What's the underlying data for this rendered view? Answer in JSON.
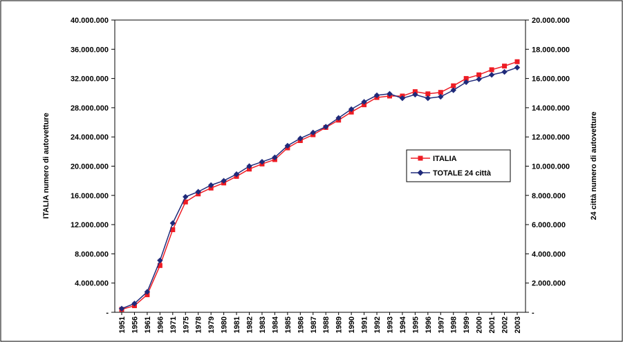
{
  "chart_data": {
    "type": "line",
    "title": "",
    "ylabel": "ITALIA numero di autovetture",
    "y2label": "24 città numero di autovetture",
    "xlabel": "",
    "ylim": [
      0,
      40000000
    ],
    "y2lim": [
      0,
      20000000
    ],
    "yticks": [
      0,
      4000000,
      8000000,
      12000000,
      16000000,
      20000000,
      24000000,
      28000000,
      32000000,
      36000000,
      40000000
    ],
    "yticklabels": [
      "-",
      "4.000.000",
      "8.000.000",
      "12.000.000",
      "16.000.000",
      "20.000.000",
      "24.000.000",
      "28.000.000",
      "32.000.000",
      "36.000.000",
      "40.000.000"
    ],
    "y2ticks": [
      0,
      2000000,
      4000000,
      6000000,
      8000000,
      10000000,
      12000000,
      14000000,
      16000000,
      18000000,
      20000000
    ],
    "y2ticklabels": [
      "-",
      "2.000.000",
      "4.000.000",
      "6.000.000",
      "8.000.000",
      "10.000.000",
      "12.000.000",
      "14.000.000",
      "16.000.000",
      "18.000.000",
      "20.000.000"
    ],
    "categories": [
      "1951",
      "1956",
      "1961",
      "1966",
      "1971",
      "1975",
      "1978",
      "1979",
      "1980",
      "1981",
      "1982",
      "1983",
      "1984",
      "1985",
      "1986",
      "1987",
      "1988",
      "1989",
      "1990",
      "1991",
      "1992",
      "1993",
      "1994",
      "1995",
      "1996",
      "1997",
      "1998",
      "1999",
      "2000",
      "2001",
      "2002",
      "2003"
    ],
    "legend_position": "right-center",
    "series": [
      {
        "name": "ITALIA",
        "axis": "left",
        "color": "#ee1c24",
        "marker": "square",
        "values": [
          400000,
          900000,
          2400000,
          6400000,
          11300000,
          15100000,
          16200000,
          17000000,
          17700000,
          18600000,
          19600000,
          20300000,
          20900000,
          22500000,
          23500000,
          24300000,
          25300000,
          26300000,
          27400000,
          28400000,
          29400000,
          29600000,
          29600000,
          30200000,
          29900000,
          30100000,
          31000000,
          32000000,
          32500000,
          33200000,
          33700000,
          34300000
        ]
      },
      {
        "name": "TOTALE 24 città",
        "axis": "right",
        "color": "#1f2a7a",
        "marker": "diamond",
        "values": [
          250000,
          600000,
          1400000,
          3550000,
          6100000,
          7900000,
          8250000,
          8700000,
          9000000,
          9450000,
          10000000,
          10300000,
          10600000,
          11400000,
          11900000,
          12300000,
          12700000,
          13300000,
          13900000,
          14400000,
          14850000,
          14950000,
          14650000,
          14900000,
          14650000,
          14750000,
          15200000,
          15750000,
          15950000,
          16250000,
          16450000,
          16750000
        ]
      }
    ]
  }
}
